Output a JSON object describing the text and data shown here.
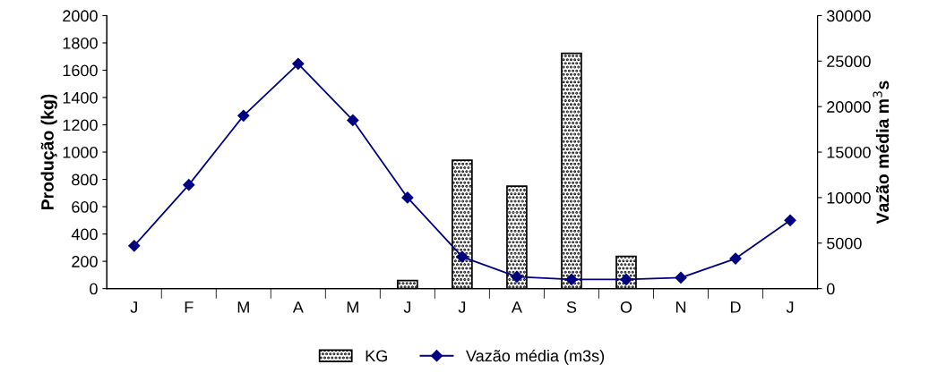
{
  "chart_data": {
    "type": "bar",
    "ylabel": "Produção (kg)",
    "y2label": "Vazão média m$^{3}$s",
    "categories": [
      "J",
      "F",
      "M",
      "A",
      "M",
      "J",
      "J",
      "A",
      "S",
      "O",
      "N",
      "D",
      "J"
    ],
    "series": [
      {
        "name": "KG",
        "color": "#000000",
        "values": [
          null,
          null,
          null,
          null,
          null,
          59,
          941,
          750,
          1724,
          237,
          null,
          null,
          null
        ]
      },
      {
        "name": "Vazão média (m3s)",
        "type": "line",
        "axis": "y2",
        "color": "#000080",
        "marker": "diamond",
        "values": [
          4700,
          11400,
          19000,
          24700,
          18500,
          10000,
          3500,
          1300,
          1000,
          1000,
          1200,
          3300,
          7500
        ]
      }
    ],
    "ylim": [
      0,
      2000
    ],
    "yticks": [
      0,
      200,
      400,
      600,
      800,
      1000,
      1200,
      1400,
      1600,
      1800,
      2000
    ],
    "y2lim": [
      0,
      30000
    ],
    "y2ticks": [
      0,
      5000,
      10000,
      15000,
      20000,
      25000,
      30000
    ],
    "grid": false,
    "legend": "bottom"
  }
}
